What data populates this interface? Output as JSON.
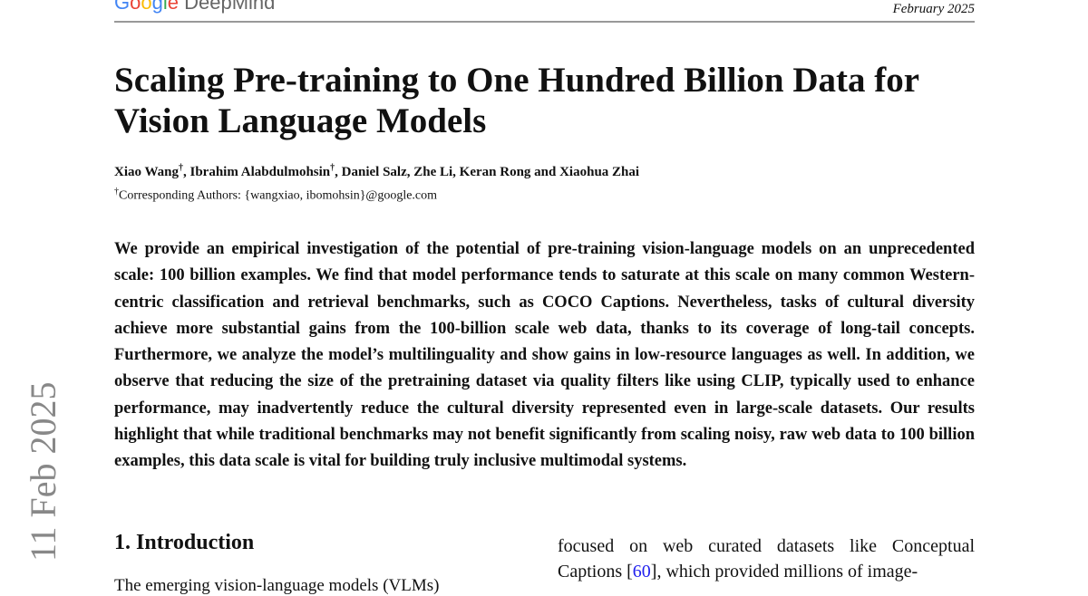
{
  "header": {
    "logo": "Google DeepMind",
    "date": "February 2025"
  },
  "title": "Scaling Pre-training to One Hundred Billion Data for Vision Language Models",
  "authors": "Xiao Wang†, Ibrahim Alabdulmohsin†, Daniel Salz, Zhe Li, Keran Rong and Xiaohua Zhai",
  "authors_parts": {
    "a1": "Xiao Wang",
    "a2": ", Ibrahim Alabdulmohsin",
    "rest": ", Daniel Salz, Zhe Li, Keran Rong and Xiaohua Zhai",
    "dagger": "†"
  },
  "corresponding": "Corresponding Authors: {wangxiao, ibomohsin}@google.com",
  "abstract": "We provide an empirical investigation of the potential of pre-training vision-language models on an unprecedented scale: 100 billion examples. We find that model performance tends to saturate at this scale on many common Western-centric classification and retrieval benchmarks, such as COCO Captions. Nevertheless, tasks of cultural diversity achieve more substantial gains from the 100-billion scale web data, thanks to its coverage of long-tail concepts. Furthermore, we analyze the model’s multilinguality and show gains in low-resource languages as well. In addition, we observe that reducing the size of the pretraining dataset via quality filters like using CLIP, typically used to enhance performance, may inadvertently reduce the cultural diversity represented even in large-scale datasets. Our results highlight that while traditional benchmarks may not benefit significantly from scaling noisy, raw web data to 100 billion examples, this data scale is vital for building truly inclusive multimodal systems.",
  "side_stamp": "11 Feb 2025",
  "section": {
    "heading": "1. Introduction",
    "col1_text": "The emerging vision-language models (VLMs)",
    "col2_pre": "focused on web curated datasets like Conceptual Captions [",
    "col2_cite": "60",
    "col2_post": "], which provided millions of image-"
  }
}
